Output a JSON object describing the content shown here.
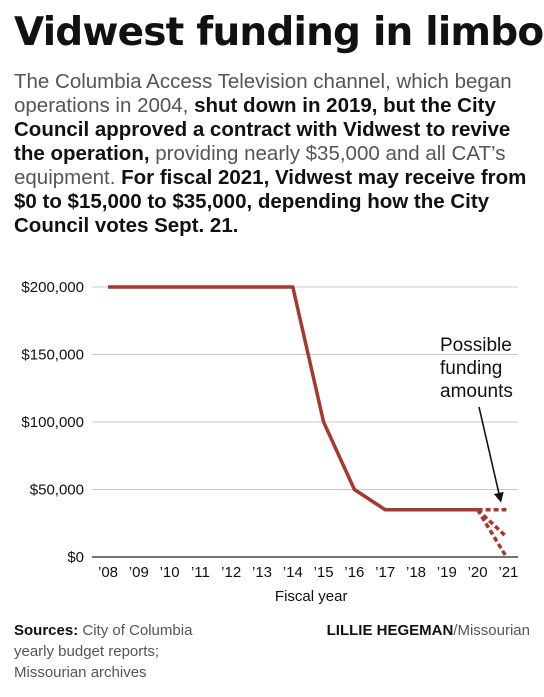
{
  "headline": "Vidwest funding in limbo",
  "intro": {
    "p1": "The Columbia Access Television channel, which began operations in 2004, ",
    "b1": "shut down in 2019, but the City Council approved a contract with Vidwest to revive the operation,",
    "p2": " providing nearly $35,000 and all CAT’s equipment. ",
    "b2": "For fiscal 2021, Vidwest may receive from $0 to $15,000 to $35,000, depending how the City Council votes Sept. 21."
  },
  "chart_data": {
    "type": "line",
    "xlabel": "Fiscal year",
    "ylabel": "",
    "categories": [
      "’08",
      "’09",
      "’10",
      "’11",
      "’12",
      "’13",
      "’14",
      "’15",
      "’16",
      "’17",
      "’18",
      "’19",
      "’20",
      "’21"
    ],
    "ytick_labels": [
      "$200,000",
      "$150,000",
      "$100,000",
      "$50,000",
      "$0"
    ],
    "ytick_values": [
      200000,
      150000,
      100000,
      50000,
      0
    ],
    "ylim": [
      0,
      200000
    ],
    "grid": true,
    "series": [
      {
        "style": "solid",
        "color": "#a8372e",
        "values": [
          200000,
          200000,
          200000,
          200000,
          200000,
          200000,
          200000,
          100000,
          50000,
          35000,
          35000,
          35000,
          35000,
          null
        ]
      }
    ],
    "projections": [
      {
        "style": "dashed",
        "color": "#a8372e",
        "from": [
          "’20",
          35000
        ],
        "to": [
          "’21",
          35000
        ]
      },
      {
        "style": "dashed",
        "color": "#a8372e",
        "from": [
          "’20",
          35000
        ],
        "to": [
          "’21",
          15000
        ]
      },
      {
        "style": "dashed",
        "color": "#a8372e",
        "from": [
          "’20",
          35000
        ],
        "to": [
          "’21",
          0
        ]
      }
    ],
    "annotation": "Possible funding amounts",
    "annotation_lines": [
      "Possible",
      "funding",
      "amounts"
    ]
  },
  "footer": {
    "sources_label": "Sources:",
    "sources_text": " City of Columbia yearly budget reports; Missourian archives",
    "credit_name": "LILLIE HEGEMAN",
    "credit_org": "/Missourian"
  }
}
